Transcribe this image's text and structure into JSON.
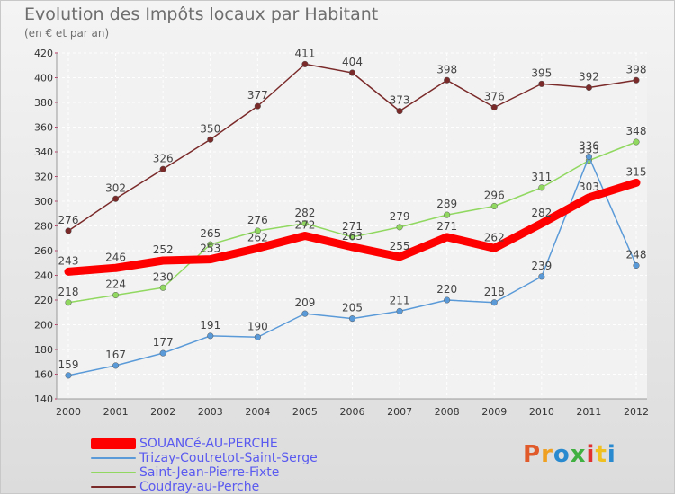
{
  "chart_data": {
    "type": "line",
    "title": "Evolution des Impôts locaux par Habitant",
    "subtitle": "(en € et par an)",
    "xlabel": "",
    "ylabel": "",
    "ylim": [
      140,
      420
    ],
    "yticks": [
      140,
      160,
      180,
      200,
      220,
      240,
      260,
      280,
      300,
      320,
      340,
      360,
      380,
      400,
      420
    ],
    "categories": [
      "2000",
      "2001",
      "2002",
      "2003",
      "2004",
      "2005",
      "2006",
      "2007",
      "2008",
      "2009",
      "2010",
      "2011",
      "2012"
    ],
    "series": [
      {
        "name": "Coudray-au-Perche",
        "color": "#7b2a2a",
        "values": [
          276,
          302,
          326,
          350,
          377,
          411,
          404,
          373,
          398,
          376,
          395,
          392,
          398
        ]
      },
      {
        "name": "Saint-Jean-Pierre-Fixte",
        "color": "#90d860",
        "values": [
          218,
          224,
          230,
          265,
          276,
          282,
          271,
          279,
          289,
          296,
          311,
          333,
          348
        ]
      },
      {
        "name": "Trizay-Coutretot-Saint-Serge",
        "color": "#5a9ad8",
        "values": [
          159,
          167,
          177,
          191,
          190,
          209,
          205,
          211,
          220,
          218,
          239,
          336,
          248
        ]
      },
      {
        "name": "SOUANCé-AU-PERCHE",
        "color": "#ff0000",
        "values": [
          243,
          246,
          252,
          253,
          262,
          272,
          263,
          255,
          271,
          262,
          282,
          303,
          315
        ]
      }
    ]
  },
  "legend": [
    {
      "name": "SOUANCé-AU-PERCHE",
      "color": "#ff0000"
    },
    {
      "name": "Trizay-Coutretot-Saint-Serge",
      "color": "#5a9ad8"
    },
    {
      "name": "Saint-Jean-Pierre-Fixte",
      "color": "#90d860"
    },
    {
      "name": "Coudray-au-Perche",
      "color": "#7b2a2a"
    }
  ],
  "logo": {
    "text": "Proxiti"
  }
}
